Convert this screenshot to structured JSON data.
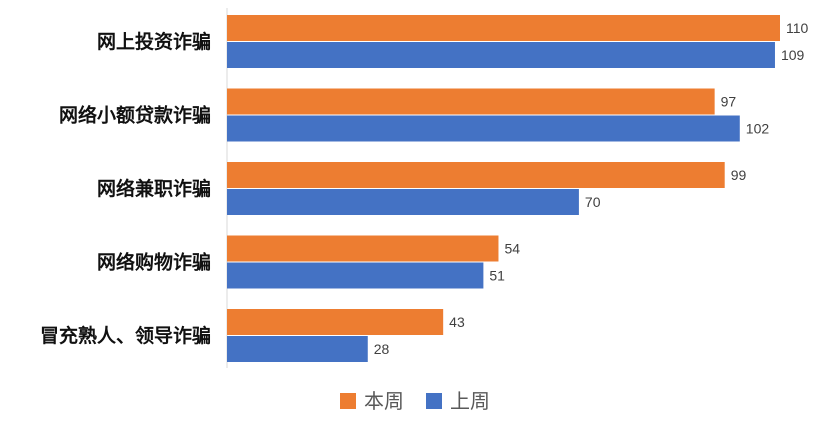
{
  "chart_data": {
    "type": "bar",
    "orientation": "horizontal",
    "title": "",
    "xlabel": "",
    "ylabel": "",
    "categories": [
      "网上投资诈骗",
      "网络小额贷款诈骗",
      "网络兼职诈骗",
      "网络购物诈骗",
      "冒充熟人、领导诈骗"
    ],
    "series": [
      {
        "name": "本周",
        "color": "#ED7D31",
        "values": [
          110,
          97,
          99,
          54,
          43
        ]
      },
      {
        "name": "上周",
        "color": "#4472C4",
        "values": [
          109,
          102,
          70,
          51,
          28
        ]
      }
    ],
    "xlim": [
      0,
      112
    ],
    "grid": false,
    "data_labels": true,
    "legend": "bottom"
  }
}
